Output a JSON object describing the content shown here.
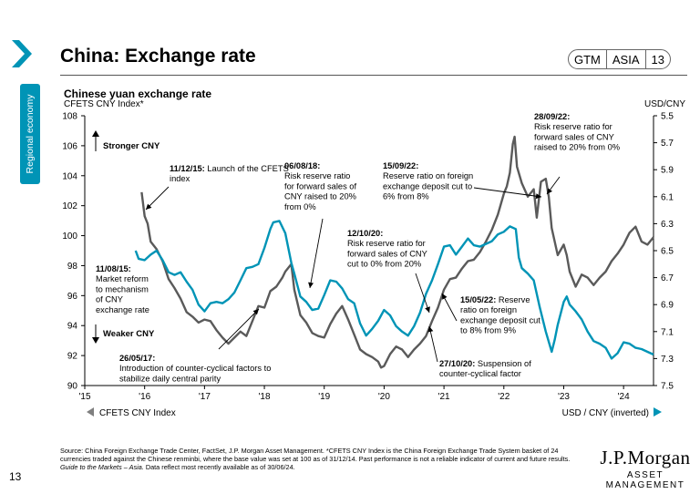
{
  "sidebar": {
    "section_label": "Regional economy",
    "page_number": "13"
  },
  "header": {
    "title": "China: Exchange rate",
    "badge": [
      "GTM",
      "ASIA",
      "13"
    ]
  },
  "colors": {
    "cfets": "#5a5a5a",
    "usd_cny": "#0094b6",
    "accent": "#0094b6"
  },
  "chart_data": {
    "type": "line",
    "title": "Chinese yuan exchange rate",
    "left_axis_label": "CFETS CNY Index*",
    "right_axis_label": "USD/CNY",
    "left_ylim": [
      90,
      108
    ],
    "left_ticks": [
      "90",
      "92",
      "94",
      "96",
      "98",
      "100",
      "102",
      "104",
      "106",
      "108"
    ],
    "right_ylim": [
      5.5,
      7.5
    ],
    "right_inverted": true,
    "right_ticks": [
      "5.5",
      "5.7",
      "5.9",
      "6.1",
      "6.3",
      "6.5",
      "6.7",
      "6.9",
      "7.1",
      "7.3",
      "7.5"
    ],
    "x_range": [
      2015.0,
      2024.5
    ],
    "x_ticks": [
      {
        "x": 2015,
        "label": "'15"
      },
      {
        "x": 2016,
        "label": "'16"
      },
      {
        "x": 2017,
        "label": "'17"
      },
      {
        "x": 2018,
        "label": "'18"
      },
      {
        "x": 2019,
        "label": "'19"
      },
      {
        "x": 2020,
        "label": "'20"
      },
      {
        "x": 2021,
        "label": "'21"
      },
      {
        "x": 2022,
        "label": "'22"
      },
      {
        "x": 2023,
        "label": "'23"
      },
      {
        "x": 2024,
        "label": "'24"
      }
    ],
    "series": [
      {
        "name": "CFETS CNY Index",
        "axis": "left",
        "points": [
          [
            2015.95,
            102.9
          ],
          [
            2016.0,
            101.3
          ],
          [
            2016.05,
            100.8
          ],
          [
            2016.1,
            99.6
          ],
          [
            2016.2,
            99.1
          ],
          [
            2016.3,
            98.3
          ],
          [
            2016.4,
            97.1
          ],
          [
            2016.5,
            96.5
          ],
          [
            2016.6,
            95.8
          ],
          [
            2016.7,
            94.9
          ],
          [
            2016.8,
            94.6
          ],
          [
            2016.9,
            94.2
          ],
          [
            2017.0,
            94.4
          ],
          [
            2017.1,
            94.3
          ],
          [
            2017.2,
            93.7
          ],
          [
            2017.3,
            93.2
          ],
          [
            2017.4,
            92.8
          ],
          [
            2017.5,
            93.2
          ],
          [
            2017.6,
            93.6
          ],
          [
            2017.7,
            93.3
          ],
          [
            2017.8,
            94.3
          ],
          [
            2017.9,
            95.3
          ],
          [
            2018.0,
            95.2
          ],
          [
            2018.1,
            96.3
          ],
          [
            2018.2,
            96.6
          ],
          [
            2018.3,
            97.2
          ],
          [
            2018.35,
            97.6
          ],
          [
            2018.45,
            98.1
          ],
          [
            2018.5,
            96.4
          ],
          [
            2018.6,
            94.7
          ],
          [
            2018.7,
            94.2
          ],
          [
            2018.8,
            93.5
          ],
          [
            2018.9,
            93.3
          ],
          [
            2019.0,
            93.2
          ],
          [
            2019.1,
            94.1
          ],
          [
            2019.2,
            94.8
          ],
          [
            2019.3,
            95.3
          ],
          [
            2019.4,
            94.4
          ],
          [
            2019.5,
            93.4
          ],
          [
            2019.6,
            92.4
          ],
          [
            2019.7,
            92.1
          ],
          [
            2019.8,
            91.9
          ],
          [
            2019.9,
            91.6
          ],
          [
            2019.95,
            91.2
          ],
          [
            2020.0,
            91.3
          ],
          [
            2020.1,
            92.1
          ],
          [
            2020.2,
            92.6
          ],
          [
            2020.3,
            92.4
          ],
          [
            2020.4,
            91.9
          ],
          [
            2020.5,
            92.4
          ],
          [
            2020.6,
            92.8
          ],
          [
            2020.7,
            93.3
          ],
          [
            2020.8,
            94.3
          ],
          [
            2020.9,
            95.2
          ],
          [
            2021.0,
            96.4
          ],
          [
            2021.1,
            97.1
          ],
          [
            2021.2,
            97.2
          ],
          [
            2021.3,
            97.8
          ],
          [
            2021.4,
            98.3
          ],
          [
            2021.5,
            98.4
          ],
          [
            2021.6,
            98.9
          ],
          [
            2021.7,
            99.6
          ],
          [
            2021.8,
            100.4
          ],
          [
            2021.9,
            101.4
          ],
          [
            2022.0,
            102.8
          ],
          [
            2022.05,
            103.3
          ],
          [
            2022.1,
            104.2
          ],
          [
            2022.15,
            106.1
          ],
          [
            2022.18,
            106.6
          ],
          [
            2022.22,
            104.6
          ],
          [
            2022.3,
            103.5
          ],
          [
            2022.4,
            102.6
          ],
          [
            2022.5,
            103.1
          ],
          [
            2022.55,
            101.2
          ],
          [
            2022.62,
            103.6
          ],
          [
            2022.7,
            103.8
          ],
          [
            2022.75,
            102.6
          ],
          [
            2022.8,
            100.5
          ],
          [
            2022.9,
            98.7
          ],
          [
            2023.0,
            99.4
          ],
          [
            2023.05,
            98.7
          ],
          [
            2023.1,
            97.6
          ],
          [
            2023.2,
            96.6
          ],
          [
            2023.3,
            97.4
          ],
          [
            2023.4,
            97.2
          ],
          [
            2023.5,
            96.7
          ],
          [
            2023.6,
            97.2
          ],
          [
            2023.7,
            97.6
          ],
          [
            2023.8,
            98.3
          ],
          [
            2023.9,
            98.8
          ],
          [
            2024.0,
            99.4
          ],
          [
            2024.05,
            99.8
          ],
          [
            2024.1,
            100.2
          ],
          [
            2024.2,
            100.6
          ],
          [
            2024.3,
            99.6
          ],
          [
            2024.4,
            99.4
          ],
          [
            2024.5,
            99.9
          ]
        ]
      },
      {
        "name": "USD / CNY (inverted)",
        "axis": "right",
        "points": [
          [
            2015.85,
            6.5
          ],
          [
            2015.9,
            6.56
          ],
          [
            2016.0,
            6.57
          ],
          [
            2016.1,
            6.53
          ],
          [
            2016.2,
            6.5
          ],
          [
            2016.3,
            6.57
          ],
          [
            2016.4,
            6.66
          ],
          [
            2016.5,
            6.68
          ],
          [
            2016.6,
            6.66
          ],
          [
            2016.7,
            6.73
          ],
          [
            2016.8,
            6.79
          ],
          [
            2016.9,
            6.9
          ],
          [
            2017.0,
            6.95
          ],
          [
            2017.1,
            6.89
          ],
          [
            2017.2,
            6.88
          ],
          [
            2017.3,
            6.89
          ],
          [
            2017.4,
            6.86
          ],
          [
            2017.5,
            6.81
          ],
          [
            2017.6,
            6.72
          ],
          [
            2017.7,
            6.63
          ],
          [
            2017.8,
            6.62
          ],
          [
            2017.9,
            6.6
          ],
          [
            2018.0,
            6.48
          ],
          [
            2018.1,
            6.34
          ],
          [
            2018.15,
            6.29
          ],
          [
            2018.25,
            6.28
          ],
          [
            2018.35,
            6.37
          ],
          [
            2018.45,
            6.59
          ],
          [
            2018.5,
            6.67
          ],
          [
            2018.6,
            6.84
          ],
          [
            2018.7,
            6.88
          ],
          [
            2018.8,
            6.94
          ],
          [
            2018.9,
            6.93
          ],
          [
            2019.0,
            6.83
          ],
          [
            2019.1,
            6.72
          ],
          [
            2019.2,
            6.73
          ],
          [
            2019.3,
            6.78
          ],
          [
            2019.4,
            6.86
          ],
          [
            2019.5,
            6.89
          ],
          [
            2019.6,
            7.04
          ],
          [
            2019.7,
            7.13
          ],
          [
            2019.8,
            7.08
          ],
          [
            2019.9,
            7.02
          ],
          [
            2020.0,
            6.94
          ],
          [
            2020.1,
            6.98
          ],
          [
            2020.2,
            7.06
          ],
          [
            2020.3,
            7.1
          ],
          [
            2020.4,
            7.13
          ],
          [
            2020.5,
            7.06
          ],
          [
            2020.6,
            6.96
          ],
          [
            2020.7,
            6.82
          ],
          [
            2020.8,
            6.72
          ],
          [
            2020.9,
            6.6
          ],
          [
            2021.0,
            6.47
          ],
          [
            2021.1,
            6.46
          ],
          [
            2021.2,
            6.53
          ],
          [
            2021.3,
            6.47
          ],
          [
            2021.4,
            6.41
          ],
          [
            2021.5,
            6.46
          ],
          [
            2021.6,
            6.47
          ],
          [
            2021.7,
            6.45
          ],
          [
            2021.8,
            6.43
          ],
          [
            2021.9,
            6.38
          ],
          [
            2022.0,
            6.36
          ],
          [
            2022.1,
            6.32
          ],
          [
            2022.2,
            6.34
          ],
          [
            2022.25,
            6.55
          ],
          [
            2022.3,
            6.63
          ],
          [
            2022.4,
            6.67
          ],
          [
            2022.5,
            6.72
          ],
          [
            2022.6,
            6.92
          ],
          [
            2022.7,
            7.1
          ],
          [
            2022.8,
            7.25
          ],
          [
            2022.85,
            7.16
          ],
          [
            2022.9,
            7.05
          ],
          [
            2023.0,
            6.88
          ],
          [
            2023.05,
            6.84
          ],
          [
            2023.1,
            6.9
          ],
          [
            2023.2,
            6.95
          ],
          [
            2023.3,
            7.01
          ],
          [
            2023.4,
            7.1
          ],
          [
            2023.5,
            7.17
          ],
          [
            2023.6,
            7.19
          ],
          [
            2023.7,
            7.22
          ],
          [
            2023.8,
            7.3
          ],
          [
            2023.9,
            7.26
          ],
          [
            2024.0,
            7.18
          ],
          [
            2024.1,
            7.19
          ],
          [
            2024.2,
            7.22
          ],
          [
            2024.3,
            7.23
          ],
          [
            2024.4,
            7.25
          ],
          [
            2024.5,
            7.27
          ]
        ]
      }
    ],
    "legend": [
      {
        "label": "CFETS CNY Index",
        "position": "bottom-left"
      },
      {
        "label": "USD / CNY (inverted)",
        "position": "bottom-right"
      }
    ],
    "direction_labels": {
      "stronger": "Stronger CNY",
      "weaker": "Weaker CNY"
    },
    "annotations": [
      {
        "date": "11/08/15",
        "text": [
          "Market reform",
          "to mechanism",
          "of CNY",
          "exchange rate"
        ]
      },
      {
        "date": "11/12/15",
        "text": [
          "Launch of the CFETS",
          "index"
        ]
      },
      {
        "date": "26/05/17",
        "text": [
          "Introduction of counter-cyclical factors to",
          "stabilize daily central parity"
        ]
      },
      {
        "date": "06/08/18",
        "text": [
          "Risk reserve ratio",
          "for forward sales of",
          "CNY raised to 20%",
          "from 0%"
        ]
      },
      {
        "date": "15/09/22",
        "text": [
          "Reserve ratio on foreign",
          "exchange deposit cut to",
          "6% from 8%"
        ]
      },
      {
        "date": "28/09/22",
        "text": [
          "Risk reserve ratio for",
          "forward sales of CNY",
          "raised to 20% from 0%"
        ]
      },
      {
        "date": "12/10/20",
        "text": [
          "Risk reserve ratio for",
          "forward sales of CNY",
          "cut to 0% from 20%"
        ]
      },
      {
        "date": "15/05/22",
        "text": [
          "Reserve",
          "ratio on foreign",
          "exchange deposit cut",
          "to 8% from 9%"
        ]
      },
      {
        "date": "27/10/20",
        "text": [
          "Suspension of",
          "counter-cyclical factor"
        ]
      }
    ]
  },
  "footer": {
    "source": "Source: China Foreign Exchange Trade Center, FactSet, J.P. Morgan Asset Management. *CFETS CNY Index is the China Foreign Exchange Trade System basket of 24 currencies traded against the Chinese renminbi, where the base value was set at 100 as of 31/12/14. Past performance is not a reliable indicator of current and future results.",
    "guide": "Guide to the Markets – Asia.",
    "note": " Data reflect most recently available as of 30/06/24."
  },
  "logo": {
    "line1": "J.P.Morgan",
    "line2": "ASSET MANAGEMENT"
  }
}
